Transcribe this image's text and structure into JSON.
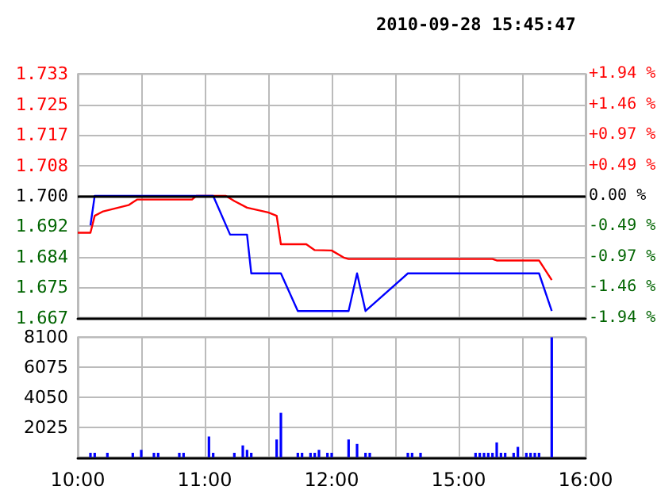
{
  "chart_data": [
    {
      "type": "line",
      "title": "2010-09-28 15:45:47",
      "categories": [
        null,
        null,
        null,
        null,
        null,
        null,
        null,
        null,
        null,
        null,
        null,
        null,
        null,
        null,
        null,
        null,
        null,
        null,
        null,
        null,
        null,
        null,
        null,
        null,
        null,
        null,
        null,
        null,
        null,
        null,
        null,
        null,
        null,
        null,
        null,
        null,
        null,
        null,
        null,
        null,
        null,
        null,
        null,
        null,
        null,
        null,
        null,
        null,
        null,
        null,
        null,
        null,
        null,
        null,
        null,
        null,
        null,
        null,
        null,
        null,
        null,
        null,
        null,
        null,
        null,
        null,
        null,
        null,
        null,
        null,
        null,
        null,
        null,
        null,
        null,
        null,
        null,
        null,
        null,
        null,
        null,
        null,
        null,
        null,
        null,
        null,
        null,
        null,
        null,
        null,
        null,
        null,
        null,
        null,
        null,
        null,
        null,
        null,
        null,
        null,
        null,
        null,
        null,
        null,
        null,
        null,
        null,
        null,
        null,
        null,
        null,
        null,
        null,
        null,
        null,
        null,
        null,
        null,
        null,
        null,
        null
      ],
      "ylim": [
        1.667,
        1.733
      ],
      "yticks": [
        {
          "value": 1.667,
          "label": "1.667"
        },
        {
          "value": 1.67525,
          "label": "1.675"
        },
        {
          "value": 1.6835,
          "label": "1.684"
        },
        {
          "value": 1.69175,
          "label": "1.692"
        },
        {
          "value": 1.7,
          "label": "1.700"
        },
        {
          "value": 1.70825,
          "label": "1.708"
        },
        {
          "value": 1.7165,
          "label": "1.717"
        },
        {
          "value": 1.72475,
          "label": "1.725"
        },
        {
          "value": 1.733,
          "label": "1.733"
        }
      ],
      "y2lim": [
        -1.94,
        1.94
      ],
      "y2ticks": [
        {
          "value": -1.94,
          "label": "-1.94 %"
        },
        {
          "value": -1.455,
          "label": "-1.46 %"
        },
        {
          "value": -0.97,
          "label": "-0.97 %"
        },
        {
          "value": -0.485,
          "label": "-0.49 %"
        },
        {
          "value": 0,
          "label": "0.00 %"
        },
        {
          "value": 0.485,
          "label": "+0.49 %"
        },
        {
          "value": 0.97,
          "label": "+0.97 %"
        },
        {
          "value": 1.455,
          "label": "+1.46 %"
        },
        {
          "value": 1.94,
          "label": "+1.94 %"
        }
      ],
      "grid": true,
      "tick_labels": "y",
      "ref_lines": [
        {
          "axis": "y",
          "value": 1.7,
          "label": null,
          "color": "#000000"
        }
      ],
      "series": [
        {
          "color": "#ff0000",
          "values": [
            1.69,
            null,
            null,
            1.69,
            1.6946,
            null,
            1.6958,
            null,
            null,
            null,
            null,
            null,
            1.6975,
            null,
            1.699,
            null,
            null,
            null,
            null,
            null,
            null,
            null,
            null,
            null,
            null,
            null,
            null,
            1.699,
            1.7,
            null,
            null,
            null,
            null,
            null,
            null,
            1.7,
            null,
            1.6986,
            null,
            null,
            1.6968,
            null,
            null,
            null,
            null,
            1.6955,
            null,
            1.6946,
            1.6869,
            null,
            null,
            null,
            null,
            null,
            1.6869,
            null,
            1.6853,
            null,
            null,
            null,
            1.6852,
            null,
            null,
            1.6832,
            1.6829,
            null,
            null,
            null,
            null,
            null,
            null,
            null,
            null,
            null,
            null,
            null,
            null,
            null,
            null,
            null,
            null,
            null,
            null,
            null,
            null,
            null,
            null,
            null,
            null,
            null,
            null,
            null,
            null,
            null,
            null,
            null,
            null,
            null,
            1.6829,
            1.6825,
            null,
            null,
            null,
            null,
            null,
            null,
            null,
            null,
            null,
            1.6825,
            null,
            null,
            1.6772,
            null,
            null,
            null,
            null,
            null,
            null,
            null,
            null
          ]
        },
        {
          "color": "#0000ff",
          "values": [
            null,
            null,
            null,
            1.692,
            1.7,
            null,
            null,
            null,
            null,
            null,
            null,
            null,
            null,
            null,
            null,
            null,
            null,
            null,
            null,
            null,
            null,
            null,
            null,
            null,
            null,
            null,
            null,
            null,
            null,
            null,
            null,
            null,
            1.7,
            null,
            null,
            null,
            1.6895,
            null,
            null,
            null,
            1.6895,
            1.679,
            null,
            null,
            null,
            null,
            null,
            null,
            1.679,
            null,
            null,
            null,
            1.6688,
            null,
            null,
            null,
            null,
            null,
            null,
            null,
            null,
            null,
            null,
            null,
            1.6688,
            null,
            1.679,
            null,
            1.6688,
            null,
            null,
            null,
            null,
            null,
            null,
            null,
            null,
            null,
            1.679,
            null,
            null,
            null,
            null,
            null,
            null,
            null,
            null,
            null,
            null,
            null,
            null,
            null,
            null,
            null,
            null,
            null,
            null,
            null,
            null,
            null,
            null,
            null,
            null,
            null,
            null,
            null,
            null,
            null,
            null,
            1.679,
            null,
            null,
            1.6688,
            null,
            null,
            null,
            null,
            null,
            null,
            null,
            null
          ]
        }
      ]
    },
    {
      "type": "bar",
      "categories": [
        "10:00",
        null,
        null,
        null,
        null,
        null,
        null,
        null,
        null,
        null,
        null,
        null,
        null,
        null,
        null,
        null,
        null,
        null,
        null,
        null,
        null,
        null,
        null,
        null,
        null,
        null,
        null,
        null,
        null,
        null,
        "11:00",
        null,
        null,
        null,
        null,
        null,
        null,
        null,
        null,
        null,
        null,
        null,
        null,
        null,
        null,
        null,
        null,
        null,
        null,
        null,
        null,
        null,
        null,
        null,
        null,
        null,
        null,
        null,
        null,
        null,
        "12:00",
        null,
        null,
        null,
        null,
        null,
        null,
        null,
        null,
        null,
        null,
        null,
        null,
        null,
        null,
        null,
        null,
        null,
        null,
        null,
        null,
        null,
        null,
        null,
        null,
        null,
        null,
        null,
        null,
        null,
        "15:00",
        null,
        null,
        null,
        null,
        null,
        null,
        null,
        null,
        null,
        null,
        null,
        null,
        null,
        null,
        null,
        null,
        null,
        null,
        null,
        null,
        null,
        null,
        null,
        null,
        null,
        null,
        null,
        null,
        null,
        "16:00"
      ],
      "ylim": [
        0,
        8100
      ],
      "yticks": [
        {
          "value": 0,
          "label": null
        },
        2025,
        4050,
        6075,
        8100
      ],
      "grid": true,
      "series": [
        {
          "color": "#0000ff",
          "values": [
            null,
            null,
            null,
            300,
            300,
            null,
            null,
            300,
            null,
            null,
            null,
            null,
            null,
            300,
            null,
            500,
            null,
            null,
            300,
            300,
            null,
            null,
            null,
            null,
            300,
            300,
            null,
            null,
            null,
            null,
            null,
            1400,
            300,
            null,
            null,
            null,
            null,
            300,
            null,
            800,
            500,
            300,
            null,
            null,
            null,
            null,
            null,
            1200,
            3000,
            null,
            null,
            null,
            300,
            300,
            null,
            300,
            300,
            500,
            null,
            300,
            300,
            null,
            null,
            null,
            1200,
            null,
            900,
            null,
            300,
            300,
            null,
            null,
            null,
            null,
            null,
            null,
            null,
            null,
            300,
            300,
            null,
            300,
            null,
            null,
            null,
            null,
            null,
            null,
            null,
            null,
            null,
            null,
            null,
            null,
            300,
            300,
            300,
            300,
            300,
            1000,
            300,
            300,
            null,
            300,
            700,
            null,
            300,
            300,
            300,
            300,
            null,
            null,
            8100,
            null,
            null,
            null,
            null,
            null,
            null,
            null,
            null
          ]
        }
      ]
    }
  ]
}
